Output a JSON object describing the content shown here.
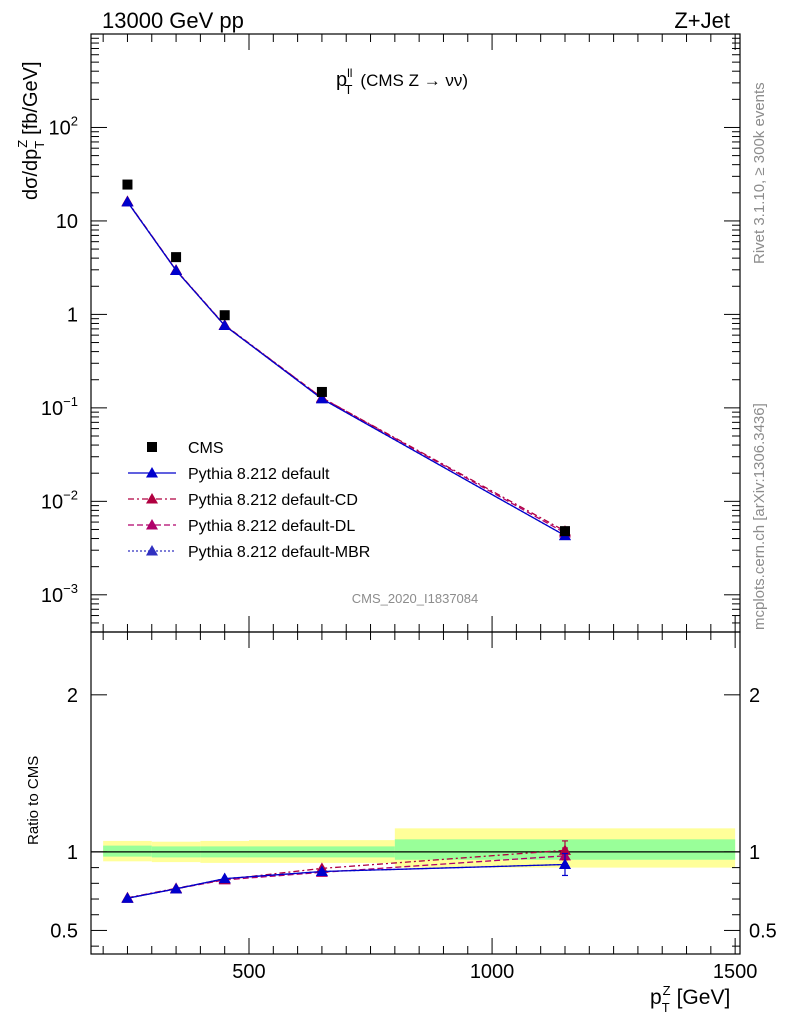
{
  "header": {
    "left": "13000 GeV pp",
    "right": "Z+Jet"
  },
  "side_text": {
    "rivet": "Rivet 3.1.10, ≥ 300k events",
    "mcplots": "mcplots.cern.ch [arXiv:1306.3436]"
  },
  "chart_data": [
    {
      "type": "scatter",
      "panel": "main",
      "title": "p_T^ll (CMS Z → νν)",
      "title_parts": {
        "p": "p",
        "sup": "ll",
        "sub": "T",
        "rest": "(CMS Z → νν)"
      },
      "ylabel": "dσ/dp_T^Z [fb/GeV]",
      "ylabel_parts": {
        "a": "dσ/dp",
        "sub": "T",
        "sup": "Z",
        "b": "[fb/GeV]"
      },
      "yscale": "log",
      "ylim": [
        0.0004,
        1000
      ],
      "xlim": [
        175,
        1510
      ],
      "y_ticks": [
        {
          "v": 0.001,
          "base": "10",
          "exp": "−3"
        },
        {
          "v": 0.01,
          "base": "10",
          "exp": "−2"
        },
        {
          "v": 0.1,
          "base": "10",
          "exp": "−1"
        },
        {
          "v": 1,
          "base": "1",
          "exp": ""
        },
        {
          "v": 10,
          "base": "10",
          "exp": ""
        },
        {
          "v": 100,
          "base": "10",
          "exp": "2"
        }
      ],
      "watermark": "CMS_2020_I1837084",
      "legend_position": "bottom-left",
      "x": [
        250,
        350,
        450,
        650,
        1150
      ],
      "series": [
        {
          "name": "CMS",
          "color": "#000000",
          "marker": "square",
          "line": "none",
          "values": [
            24.5,
            4.1,
            0.98,
            0.148,
            0.0048
          ]
        },
        {
          "name": "Pythia 8.212 default",
          "color": "#0000cc",
          "marker": "triangle",
          "line": "solid",
          "values": [
            16.0,
            2.95,
            0.76,
            0.125,
            0.0043
          ]
        },
        {
          "name": "Pythia 8.212 default-CD",
          "color": "#b00040",
          "marker": "triangle",
          "line": "dashdot",
          "values": [
            16.2,
            2.98,
            0.77,
            0.128,
            0.0048
          ]
        },
        {
          "name": "Pythia 8.212 default-DL",
          "color": "#b0006a",
          "marker": "triangle",
          "line": "dashed",
          "values": [
            16.0,
            2.97,
            0.76,
            0.128,
            0.0046
          ]
        },
        {
          "name": "Pythia 8.212 default-MBR",
          "color": "#3030c0",
          "marker": "triangle",
          "line": "dotted",
          "values": [
            16.0,
            2.95,
            0.76,
            0.125,
            0.0043
          ]
        }
      ]
    },
    {
      "type": "line",
      "panel": "ratio",
      "ylabel": "Ratio to CMS",
      "xlabel": "p_T^Z [GeV]",
      "xlabel_parts": {
        "p": "p",
        "sub": "T",
        "sup": "Z",
        "rest": "[GeV]"
      },
      "ylim": [
        0.35,
        2.4
      ],
      "xlim": [
        175,
        1510
      ],
      "x_ticks": [
        500,
        1000,
        1500
      ],
      "y_ticks": [
        0.5,
        1,
        2
      ],
      "bands": [
        {
          "x": [
            200,
            300
          ],
          "stat": [
            0.97,
            1.04
          ],
          "total": [
            0.94,
            1.07
          ]
        },
        {
          "x": [
            300,
            400
          ],
          "stat": [
            0.965,
            1.035
          ],
          "total": [
            0.935,
            1.065
          ]
        },
        {
          "x": [
            400,
            500
          ],
          "stat": [
            0.965,
            1.035
          ],
          "total": [
            0.93,
            1.07
          ]
        },
        {
          "x": [
            500,
            800
          ],
          "stat": [
            0.965,
            1.035
          ],
          "total": [
            0.93,
            1.075
          ]
        },
        {
          "x": [
            800,
            1500
          ],
          "stat": [
            0.95,
            1.08
          ],
          "total": [
            0.9,
            1.15
          ]
        }
      ],
      "x": [
        250,
        350,
        450,
        650,
        1150
      ],
      "series": [
        {
          "name": "Pythia 8.212 default",
          "color": "#0000cc",
          "line": "solid",
          "values": [
            0.705,
            0.765,
            0.83,
            0.875,
            0.92
          ],
          "err_last": 0.07
        },
        {
          "name": "Pythia 8.212 default-CD",
          "color": "#b00040",
          "line": "dashdot",
          "values": [
            0.708,
            0.768,
            0.825,
            0.895,
            1.01
          ],
          "err_last": 0.06
        },
        {
          "name": "Pythia 8.212 default-DL",
          "color": "#b0006a",
          "line": "dashed",
          "values": [
            0.705,
            0.765,
            0.822,
            0.87,
            0.975
          ],
          "err_last": 0.05
        },
        {
          "name": "Pythia 8.212 default-MBR",
          "color": "#3030c0",
          "line": "dotted",
          "values": [
            0.705,
            0.765,
            0.83,
            0.875,
            0.92
          ],
          "err_last": 0.0
        }
      ]
    }
  ]
}
